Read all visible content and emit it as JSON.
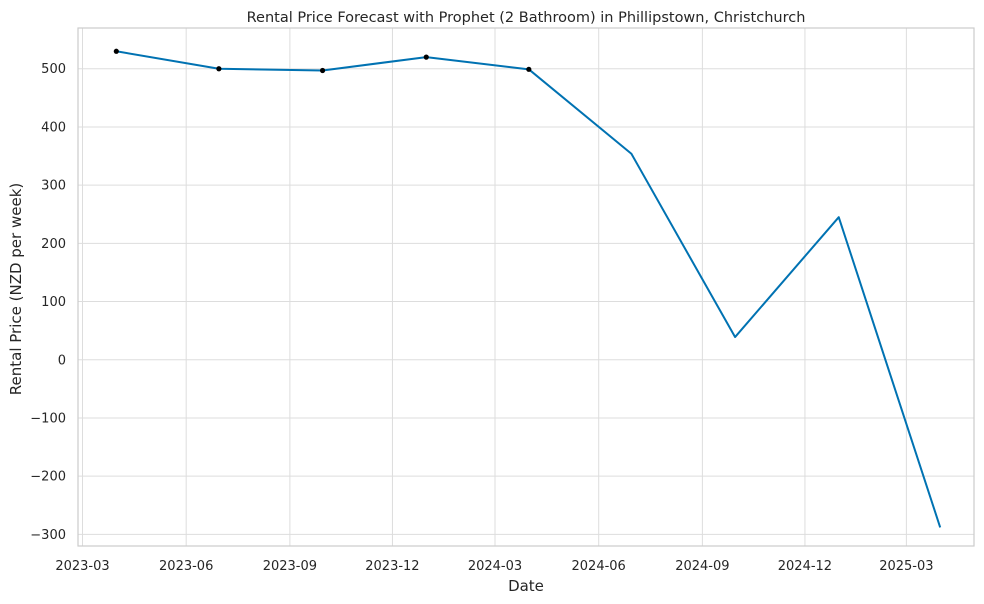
{
  "chart_data": {
    "type": "line",
    "title": "Rental Price Forecast with Prophet (2 Bathroom) in Phillipstown, Christchurch",
    "xlabel": "Date",
    "ylabel": "Rental Price (NZD per week)",
    "xlim": [
      "2023-02-25",
      "2025-04-30"
    ],
    "ylim": [
      -320,
      570
    ],
    "grid": true,
    "x_ticks": [
      "2023-03",
      "2023-06",
      "2023-09",
      "2023-12",
      "2024-03",
      "2024-06",
      "2024-09",
      "2024-12",
      "2025-03"
    ],
    "y_ticks": [
      -300,
      -200,
      -100,
      0,
      100,
      200,
      300,
      400,
      500
    ],
    "y_tick_labels": [
      "−300",
      "−200",
      "−100",
      "0",
      "100",
      "200",
      "300",
      "400",
      "500"
    ],
    "colors": {
      "forecast": "#0072b2",
      "observed": "#000000",
      "grid": "#dddddd",
      "frame": "#cccccc"
    },
    "series": [
      {
        "role": "forecast",
        "x": [
          "2023-03-31",
          "2023-06-30",
          "2023-09-30",
          "2023-12-31",
          "2024-03-31",
          "2024-06-30",
          "2024-09-30",
          "2024-12-31",
          "2025-03-31"
        ],
        "y": [
          530,
          500,
          497,
          520,
          499,
          354,
          39,
          245,
          -288
        ]
      },
      {
        "role": "observed",
        "x": [
          "2023-03-31",
          "2023-06-30",
          "2023-09-30",
          "2023-12-31",
          "2024-03-31"
        ],
        "y": [
          530,
          500,
          497,
          520,
          499
        ]
      }
    ]
  }
}
